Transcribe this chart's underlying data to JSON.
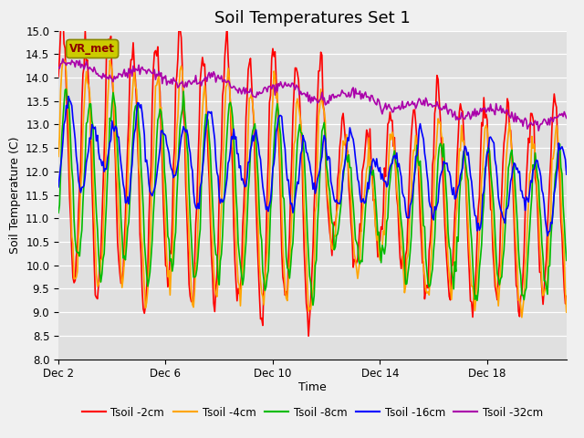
{
  "title": "Soil Temperatures Set 1",
  "xlabel": "Time",
  "ylabel": "Soil Temperature (C)",
  "ylim": [
    8.0,
    15.0
  ],
  "yticks": [
    8.0,
    8.5,
    9.0,
    9.5,
    10.0,
    10.5,
    11.0,
    11.5,
    12.0,
    12.5,
    13.0,
    13.5,
    14.0,
    14.5,
    15.0
  ],
  "xtick_labels": [
    "Dec 2",
    "Dec 6",
    "Dec 10",
    "Dec 14",
    "Dec 18"
  ],
  "xtick_positions": [
    0,
    96,
    192,
    288,
    384
  ],
  "total_points": 456,
  "period": 21.0,
  "legend_entries": [
    {
      "label": "Tsoil -2cm",
      "color": "#FF0000"
    },
    {
      "label": "Tsoil -4cm",
      "color": "#FFA500"
    },
    {
      "label": "Tsoil -8cm",
      "color": "#00BB00"
    },
    {
      "label": "Tsoil -16cm",
      "color": "#0000FF"
    },
    {
      "label": "Tsoil -32cm",
      "color": "#AA00AA"
    }
  ],
  "annotation_text": "VR_met",
  "annotation_box_facecolor": "#CCCC00",
  "annotation_box_edgecolor": "#888800",
  "annotation_text_color": "#8B0000",
  "plot_bg_color": "#E0E0E0",
  "fig_bg_color": "#F0F0F0",
  "grid_color": "#FFFFFF",
  "line_width": 1.2,
  "title_fontsize": 13,
  "axis_label_fontsize": 9,
  "tick_fontsize": 8.5,
  "legend_fontsize": 8.5
}
